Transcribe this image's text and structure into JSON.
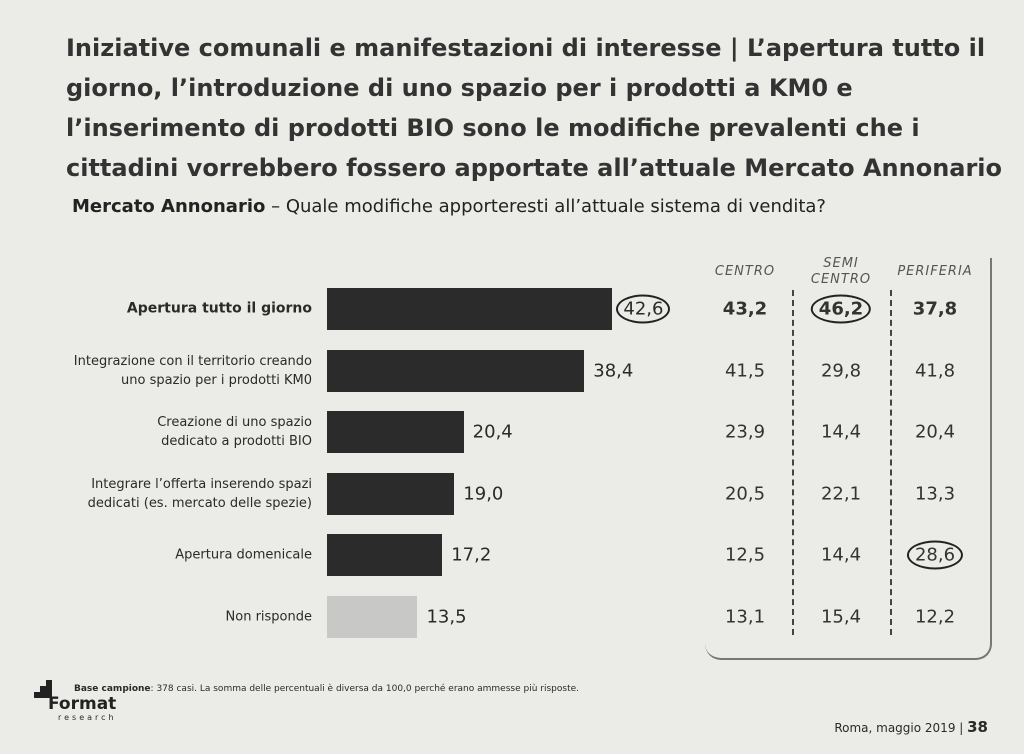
{
  "header": {
    "title": "Iniziative comunali e manifestazioni di interesse | L’apertura tutto il giorno, l’introduzione di uno spazio per i prodotti a KM0 e l’inserimento di prodotti BIO sono le modifiche prevalenti che i cittadini vorrebbero fossero apportate all’attuale Mercato Annonario",
    "subtitle_bold": "Mercato Annonario",
    "subtitle_rest": "– Quale modifiche apporteresti all’attuale sistema di vendita?"
  },
  "chart_data": {
    "type": "bar",
    "orientation": "horizontal",
    "categories": [
      "Apertura tutto il giorno",
      "Integrazione con il territorio creando\nuno spazio per i prodotti KM0",
      "Creazione di uno spazio\ndedicato a prodotti BIO",
      "Integrare l’offerta inserendo spazi\ndedicati (es. mercato delle spezie)",
      "Apertura domenicale",
      "Non risponde"
    ],
    "values": [
      42.6,
      38.4,
      20.4,
      19.0,
      17.2,
      13.5
    ],
    "value_labels": [
      "42,6",
      "38,4",
      "20,4",
      "19,0",
      "17,2",
      "13,5"
    ],
    "colors": [
      "#2b2b2b",
      "#2b2b2b",
      "#2b2b2b",
      "#2b2b2b",
      "#2b2b2b",
      "#c8c8c6"
    ],
    "xlim": [
      0,
      50
    ]
  },
  "table": {
    "columns": [
      "CENTRO",
      "SEMI\nCENTRO",
      "PERIFERIA"
    ],
    "rows": [
      [
        "43,2",
        "46,2",
        "37,8"
      ],
      [
        "41,5",
        "29,8",
        "41,8"
      ],
      [
        "23,9",
        "14,4",
        "20,4"
      ],
      [
        "20,5",
        "22,1",
        "13,3"
      ],
      [
        "12,5",
        "14,4",
        "28,6"
      ],
      [
        "13,1",
        "15,4",
        "12,2"
      ]
    ]
  },
  "footer": {
    "base_label": "Base campione",
    "base_text": ": 378 casi. La somma delle percentuali è diversa da 100,0 perché erano ammesse più risposte.",
    "logo": "Format",
    "logo_sub": "research",
    "place_date": "Roma, maggio 2019",
    "page": "38"
  }
}
